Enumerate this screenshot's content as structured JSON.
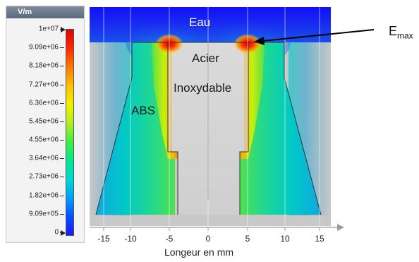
{
  "legend": {
    "unit": "V/m",
    "ticks": [
      "1e+07",
      "9.09e+06",
      "8.18e+06",
      "7.27e+06",
      "6.36e+06",
      "5.45e+06",
      "4.55e+06",
      "3.64e+06",
      "2.73e+06",
      "1.82e+06",
      "9.09e+05",
      "0"
    ],
    "colormap": [
      "#1a1aff",
      "#0050ff",
      "#00a0ff",
      "#00d8d0",
      "#00e890",
      "#40f040",
      "#b0f020",
      "#f0f000",
      "#ffc000",
      "#ff7a00",
      "#ff2a00",
      "#e00000"
    ]
  },
  "labels": {
    "water": "Eau",
    "steel_line1": "Acier",
    "steel_line2": "Inoxydable",
    "abs": "ABS",
    "emax_main": "E",
    "emax_sub": "max"
  },
  "x_axis": {
    "label": "Longeur en mm",
    "ticks": [
      "-15",
      "-10",
      "-5",
      "0",
      "5",
      "10",
      "15"
    ]
  },
  "colors": {
    "water_blue": "#1a2cf0",
    "field_green": "#3cdc3c",
    "field_hot": "#e00000",
    "steel_gray": "#d8d8d8",
    "background_gray": "#c8c8c8"
  }
}
